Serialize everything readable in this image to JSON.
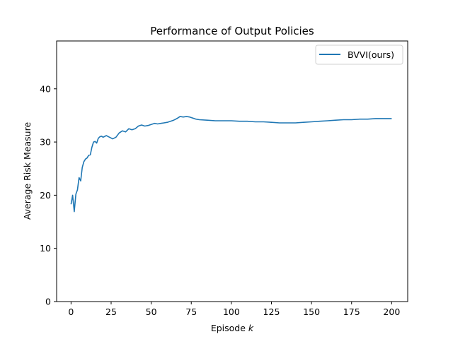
{
  "chart_data": {
    "type": "line",
    "title": "Performance of Output Policies",
    "xlabel": "Episode",
    "xlabel_var": "k",
    "ylabel": "Average Risk Measure",
    "xlim": [
      -9,
      210
    ],
    "ylim": [
      0,
      49
    ],
    "xticks": [
      0,
      25,
      50,
      75,
      100,
      125,
      150,
      175,
      200
    ],
    "yticks": [
      0,
      10,
      20,
      30,
      40
    ],
    "grid": false,
    "legend_position": "top-right",
    "colors": {
      "series": "#1f77b4",
      "axes": "#000000",
      "background": "#ffffff"
    },
    "series": [
      {
        "name": "BVVI(ours)",
        "x": [
          0,
          1,
          2,
          3,
          4,
          5,
          6,
          7,
          8,
          9,
          10,
          11,
          12,
          13,
          14,
          15,
          16,
          17,
          18,
          19,
          20,
          22,
          24,
          26,
          28,
          30,
          32,
          34,
          36,
          38,
          40,
          42,
          44,
          46,
          48,
          50,
          52,
          54,
          56,
          58,
          60,
          62,
          64,
          66,
          68,
          70,
          72,
          74,
          76,
          78,
          80,
          85,
          90,
          95,
          100,
          105,
          110,
          115,
          120,
          125,
          130,
          135,
          140,
          145,
          150,
          155,
          160,
          165,
          170,
          175,
          180,
          185,
          190,
          195,
          200
        ],
        "y": [
          18.3,
          20.0,
          16.9,
          20.2,
          21.0,
          23.3,
          22.7,
          25.2,
          26.3,
          26.8,
          27.0,
          27.5,
          27.6,
          29.0,
          30.0,
          30.1,
          29.8,
          30.7,
          31.0,
          31.1,
          30.9,
          31.2,
          30.9,
          30.6,
          30.9,
          31.7,
          32.1,
          31.9,
          32.5,
          32.3,
          32.5,
          33.0,
          33.2,
          33.0,
          33.1,
          33.3,
          33.5,
          33.4,
          33.5,
          33.6,
          33.7,
          33.9,
          34.1,
          34.4,
          34.8,
          34.7,
          34.8,
          34.7,
          34.5,
          34.3,
          34.2,
          34.1,
          34.0,
          34.0,
          34.0,
          33.9,
          33.9,
          33.8,
          33.8,
          33.7,
          33.6,
          33.6,
          33.6,
          33.7,
          33.8,
          33.9,
          34.0,
          34.1,
          34.2,
          34.2,
          34.3,
          34.3,
          34.4,
          34.4,
          34.4
        ]
      }
    ]
  }
}
